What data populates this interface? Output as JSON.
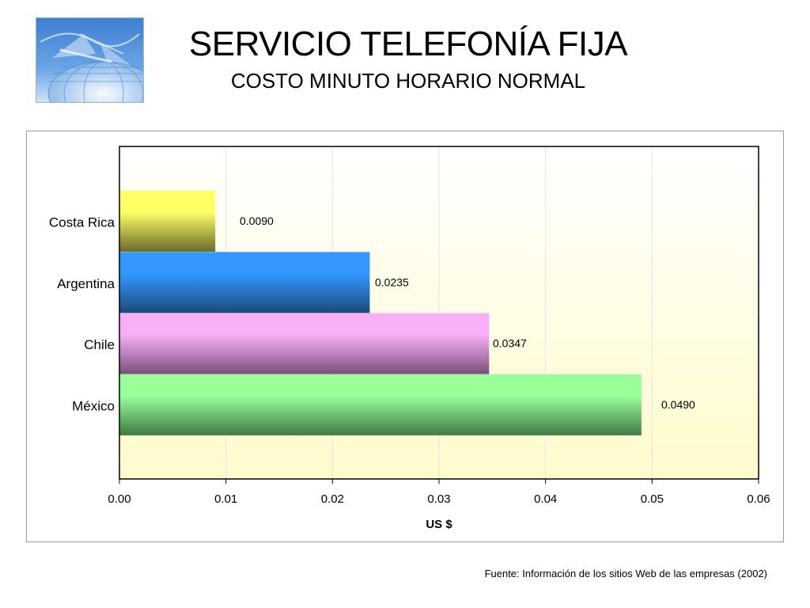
{
  "header": {
    "title": "SERVICIO TELEFONÍA FIJA",
    "subtitle": "COSTO MINUTO HORARIO NORMAL"
  },
  "logo": {
    "icon": "globe-network-icon"
  },
  "footer": {
    "source": "Fuente:  Información de los sitios Web de las empresas (2002)"
  },
  "chart_data": {
    "type": "bar",
    "orientation": "horizontal",
    "title": "",
    "xlabel": "US $",
    "ylabel": "",
    "categories": [
      "Costa Rica",
      "Argentina",
      "Chile",
      "México"
    ],
    "values": [
      0.009,
      0.0235,
      0.0347,
      0.049
    ],
    "data_labels": [
      "0.0090",
      "0.0235",
      "0.0347",
      "0.0490"
    ],
    "xlim": [
      0,
      0.06
    ],
    "xticks": [
      "0.00",
      "0.01",
      "0.02",
      "0.03",
      "0.04",
      "0.05",
      "0.06"
    ],
    "grid": true,
    "legend": "none",
    "bar_colors": [
      {
        "top": "#ffff66",
        "bottom": "#6b6a2a"
      },
      {
        "top": "#3399ff",
        "bottom": "#1b4a7a"
      },
      {
        "top": "#f7b0f7",
        "bottom": "#7a4f7a"
      },
      {
        "top": "#99ff99",
        "bottom": "#3f7a45"
      }
    ],
    "plot_background": {
      "top": "#ffffff",
      "bottom": "#fffbcc"
    }
  }
}
